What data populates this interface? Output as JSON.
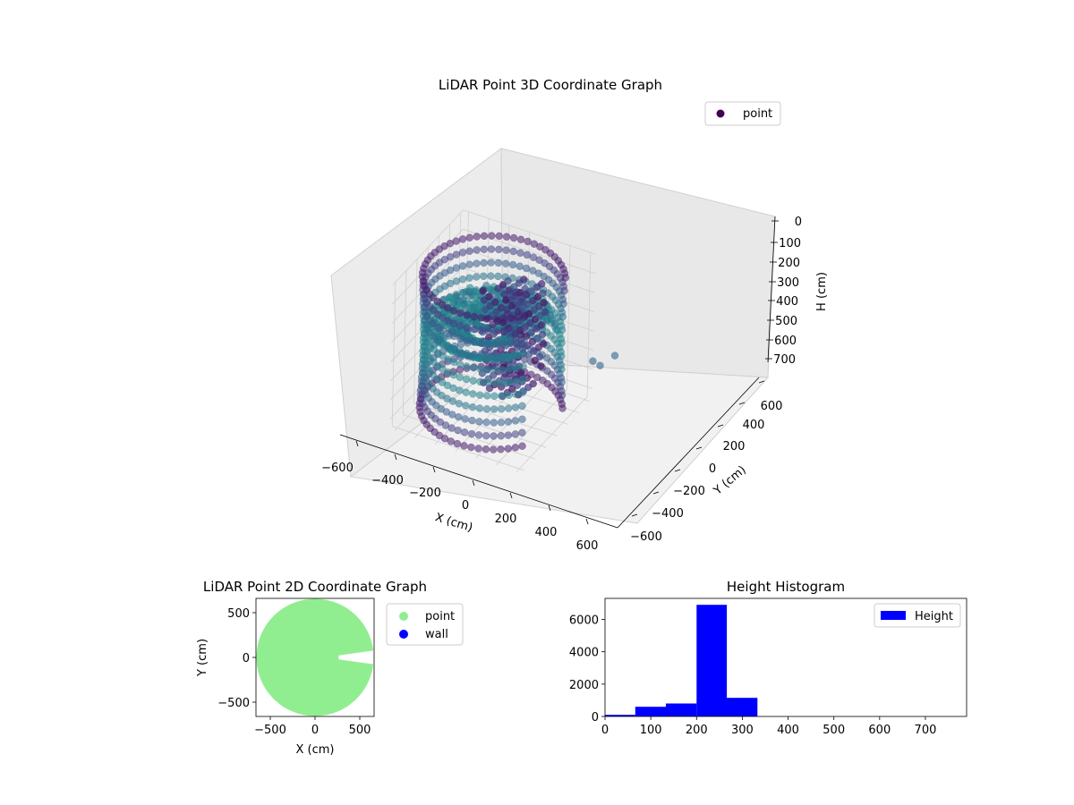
{
  "chart_data": [
    {
      "type": "scatter",
      "projection": "3d",
      "title": "LiDAR Point 3D Coordinate Graph",
      "xlabel": "X (cm)",
      "ylabel": "Y (cm)",
      "zlabel": "H (cm)",
      "xlim": [
        -650,
        650
      ],
      "ylim": [
        -650,
        650
      ],
      "zlim": [
        750,
        0
      ],
      "z_inverted": true,
      "x_ticks": [
        "−600",
        "−400",
        "−200",
        "0",
        "200",
        "400",
        "600"
      ],
      "y_ticks": [
        "−600",
        "−400",
        "−200",
        "0",
        "200",
        "400",
        "600"
      ],
      "z_ticks": [
        "0",
        "100",
        "200",
        "300",
        "400",
        "500",
        "600",
        "700"
      ],
      "colormap": "viridis",
      "grid": true,
      "legend": {
        "position": "upper-right",
        "entries": [
          "point"
        ],
        "color": "#440154"
      },
      "series": [
        {
          "name": "point",
          "shape": "ring point cloud",
          "outer_radius": 620,
          "top_height": 40,
          "bottom_height": 720,
          "open_sector_direction": "+X",
          "open_sector_deg": [
            -35,
            30
          ],
          "cluster_x_range": [
            0,
            400
          ],
          "cluster_height_range": [
            50,
            600
          ]
        }
      ]
    },
    {
      "type": "scatter",
      "title": "LiDAR Point 2D Coordinate Graph",
      "xlabel": "X (cm)",
      "ylabel": "Y (cm)",
      "xlim": [
        -660,
        660
      ],
      "ylim": [
        -660,
        660
      ],
      "x_ticks": [
        "−500",
        "0",
        "500"
      ],
      "y_ticks": [
        "−500",
        "0",
        "500"
      ],
      "legend": {
        "position": "outside-right",
        "entries": [
          "point",
          "wall"
        ]
      },
      "series": [
        {
          "name": "point",
          "color": "#90ee90",
          "shape": "filled disc",
          "radius": 640,
          "notch_direction": "+X",
          "notch_deg": [
            -8,
            8
          ],
          "notch_inner_radius": 250
        },
        {
          "name": "wall",
          "color": "#0000ff",
          "points": []
        }
      ]
    },
    {
      "type": "bar",
      "title": "Height Histogram",
      "xlim": [
        0,
        790
      ],
      "ylim": [
        0,
        7300
      ],
      "x_ticks": [
        "0",
        "100",
        "200",
        "300",
        "400",
        "500",
        "600",
        "700"
      ],
      "y_ticks": [
        "0",
        "2000",
        "4000",
        "6000"
      ],
      "color": "#0000ff",
      "legend": {
        "position": "upper-right",
        "entries": [
          "Height"
        ]
      },
      "bins": [
        {
          "x0": 0,
          "x1": 66,
          "count": 100
        },
        {
          "x0": 66,
          "x1": 133,
          "count": 600
        },
        {
          "x0": 133,
          "x1": 200,
          "count": 800
        },
        {
          "x0": 200,
          "x1": 266,
          "count": 6900
        },
        {
          "x0": 266,
          "x1": 333,
          "count": 1150
        },
        {
          "x0": 333,
          "x1": 400,
          "count": 0
        },
        {
          "x0": 400,
          "x1": 466,
          "count": 0
        },
        {
          "x0": 466,
          "x1": 533,
          "count": 0
        },
        {
          "x0": 533,
          "x1": 600,
          "count": 0
        },
        {
          "x0": 600,
          "x1": 666,
          "count": 0
        },
        {
          "x0": 666,
          "x1": 733,
          "count": 0
        },
        {
          "x0": 733,
          "x1": 790,
          "count": 0
        }
      ]
    }
  ]
}
